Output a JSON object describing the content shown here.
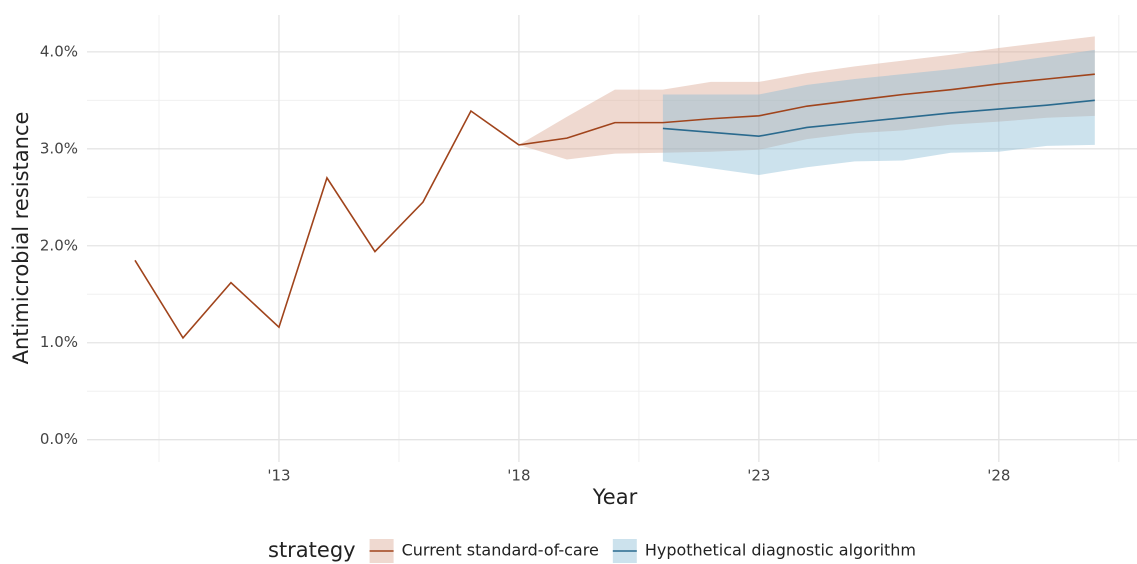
{
  "chart_data": {
    "type": "line",
    "x_label": "Year",
    "y_label": "Antimicrobial resistance",
    "legend_title": "strategy",
    "legend_position": "bottom",
    "grid": true,
    "x": [
      2010,
      2011,
      2012,
      2013,
      2014,
      2015,
      2016,
      2017,
      2018,
      2019,
      2020,
      2021,
      2022,
      2023,
      2024,
      2025,
      2026,
      2027,
      2028,
      2029,
      2030
    ],
    "series": [
      {
        "name": "Current standard-of-care",
        "color": "#a0441c",
        "band_color": "#d9a58e",
        "values": [
          1.85,
          1.05,
          1.62,
          1.16,
          2.7,
          1.94,
          2.45,
          3.39,
          3.04,
          3.11,
          3.27,
          3.27,
          3.31,
          3.34,
          3.44,
          3.5,
          3.56,
          3.61,
          3.67,
          3.72,
          3.77
        ],
        "lower": [
          null,
          null,
          null,
          null,
          null,
          null,
          null,
          null,
          3.04,
          2.89,
          2.95,
          2.96,
          2.97,
          2.99,
          3.1,
          3.16,
          3.19,
          3.25,
          3.28,
          3.32,
          3.34
        ],
        "upper": [
          null,
          null,
          null,
          null,
          null,
          null,
          null,
          null,
          3.04,
          3.33,
          3.61,
          3.61,
          3.69,
          3.69,
          3.78,
          3.85,
          3.91,
          3.97,
          4.04,
          4.1,
          4.16
        ]
      },
      {
        "name": "Hypothetical diagnostic algorithm",
        "color": "#2a6a8e",
        "band_color": "#86bad3",
        "values": [
          null,
          null,
          null,
          null,
          null,
          null,
          null,
          null,
          null,
          null,
          null,
          3.21,
          3.17,
          3.13,
          3.22,
          3.27,
          3.32,
          3.37,
          3.41,
          3.45,
          3.5
        ],
        "lower": [
          null,
          null,
          null,
          null,
          null,
          null,
          null,
          null,
          null,
          null,
          null,
          2.87,
          2.8,
          2.73,
          2.81,
          2.87,
          2.88,
          2.96,
          2.97,
          3.03,
          3.04
        ],
        "upper": [
          null,
          null,
          null,
          null,
          null,
          null,
          null,
          null,
          null,
          null,
          null,
          3.56,
          3.56,
          3.56,
          3.66,
          3.72,
          3.77,
          3.82,
          3.88,
          3.95,
          4.02
        ]
      }
    ],
    "xlim": [
      2009,
      2030.9
    ],
    "xticks": [
      {
        "value": 2013,
        "label": "'13"
      },
      {
        "value": 2018,
        "label": "'18"
      },
      {
        "value": 2023,
        "label": "'23"
      },
      {
        "value": 2028,
        "label": "'28"
      }
    ],
    "ylim": [
      -0.23,
      4.38
    ],
    "yticks": [
      {
        "value": 0,
        "label": "0.0%"
      },
      {
        "value": 1,
        "label": "1.0%"
      },
      {
        "value": 2,
        "label": "2.0%"
      },
      {
        "value": 3,
        "label": "3.0%"
      },
      {
        "value": 4,
        "label": "4.0%"
      }
    ]
  }
}
